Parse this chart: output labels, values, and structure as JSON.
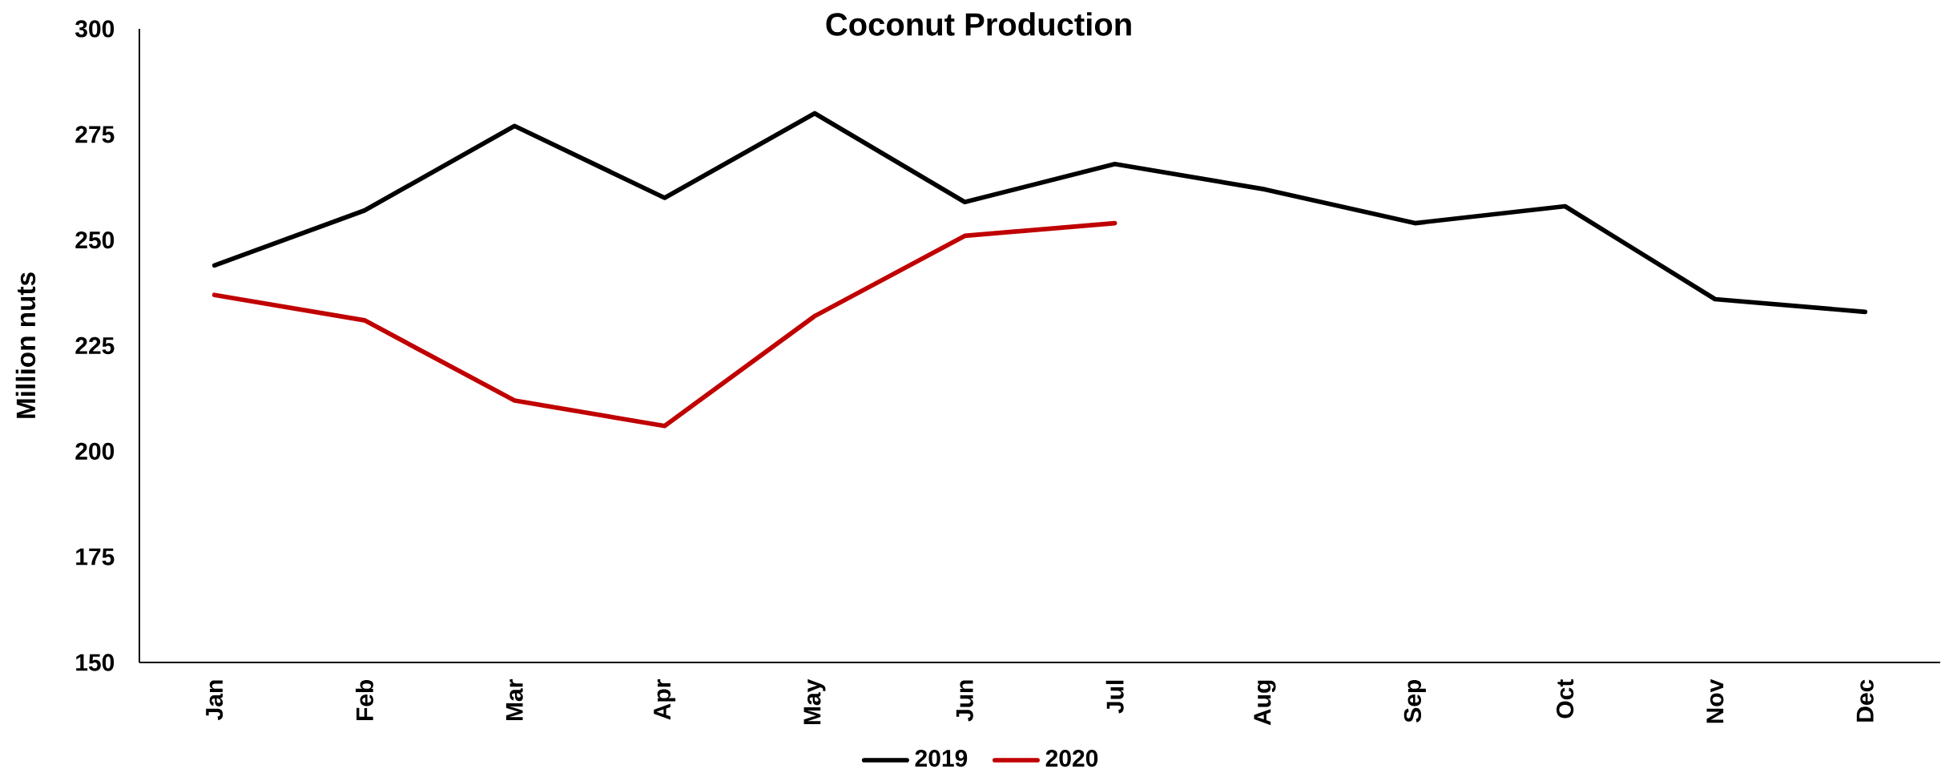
{
  "chart_data": {
    "type": "line",
    "title": "Coconut Production",
    "ylabel": "Million nuts",
    "categories": [
      "Jan",
      "Feb",
      "Mar",
      "Apr",
      "May",
      "Jun",
      "Jul",
      "Aug",
      "Sep",
      "Oct",
      "Nov",
      "Dec"
    ],
    "series": [
      {
        "name": "2019",
        "color": "#000000",
        "values": [
          244,
          257,
          277,
          260,
          280,
          259,
          268,
          262,
          254,
          258,
          236,
          233
        ]
      },
      {
        "name": "2020",
        "color": "#c00000",
        "values": [
          237,
          231,
          212,
          206,
          232,
          251,
          254,
          null,
          null,
          null,
          null,
          null
        ]
      }
    ],
    "ylim": [
      150,
      300
    ],
    "yticks": [
      150,
      175,
      200,
      225,
      250,
      275,
      300
    ],
    "legend": "bottom"
  }
}
